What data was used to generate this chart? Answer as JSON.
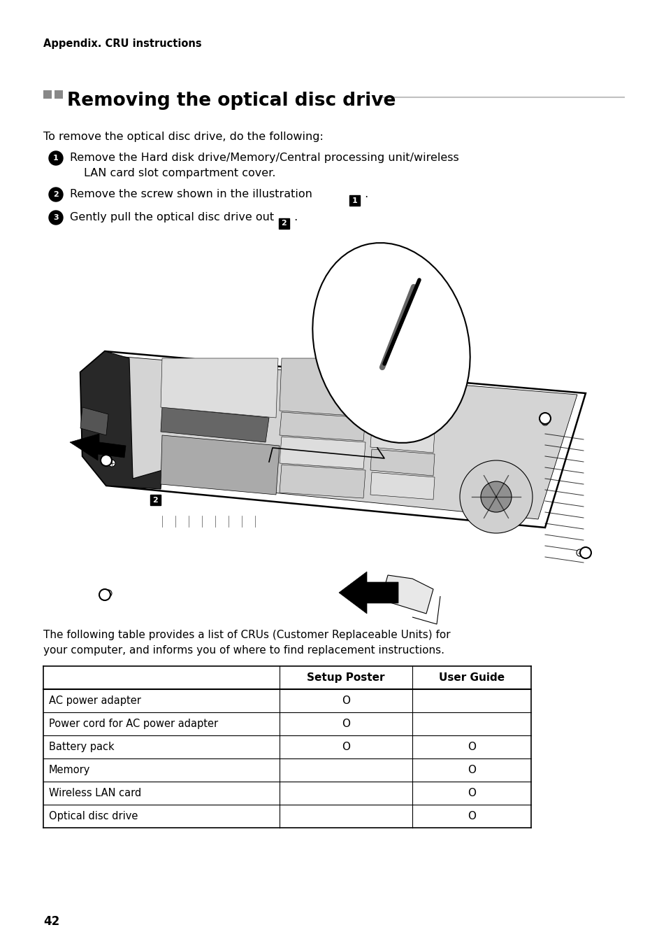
{
  "bg_color": "#ffffff",
  "appendix_label": "Appendix. CRU instructions",
  "section_title": "Removing the optical disc drive",
  "intro_text": "To remove the optical disc drive, do the following:",
  "step1_line1": "Remove the Hard disk drive/Memory/Central processing unit/wireless",
  "step1_line2": "LAN card slot compartment cover.",
  "step2_text": "Remove the screw shown in the illustration",
  "step3_text": "Gently pull the optical disc drive out",
  "table_intro_line1": "The following table provides a list of CRUs (Customer Replaceable Units) for",
  "table_intro_line2": "your computer, and informs you of where to find replacement instructions.",
  "table_headers": [
    "",
    "Setup Poster",
    "User Guide"
  ],
  "table_rows": [
    [
      "AC power adapter",
      "O",
      ""
    ],
    [
      "Power cord for AC power adapter",
      "O",
      ""
    ],
    [
      "Battery pack",
      "O",
      "O"
    ],
    [
      "Memory",
      "",
      "O"
    ],
    [
      "Wireless LAN card",
      "",
      "O"
    ],
    [
      "Optical disc drive",
      "",
      "O"
    ]
  ],
  "page_number": "42",
  "text_color": "#000000",
  "title_line_color": "#c0c0c0",
  "dot_color": "#888888"
}
